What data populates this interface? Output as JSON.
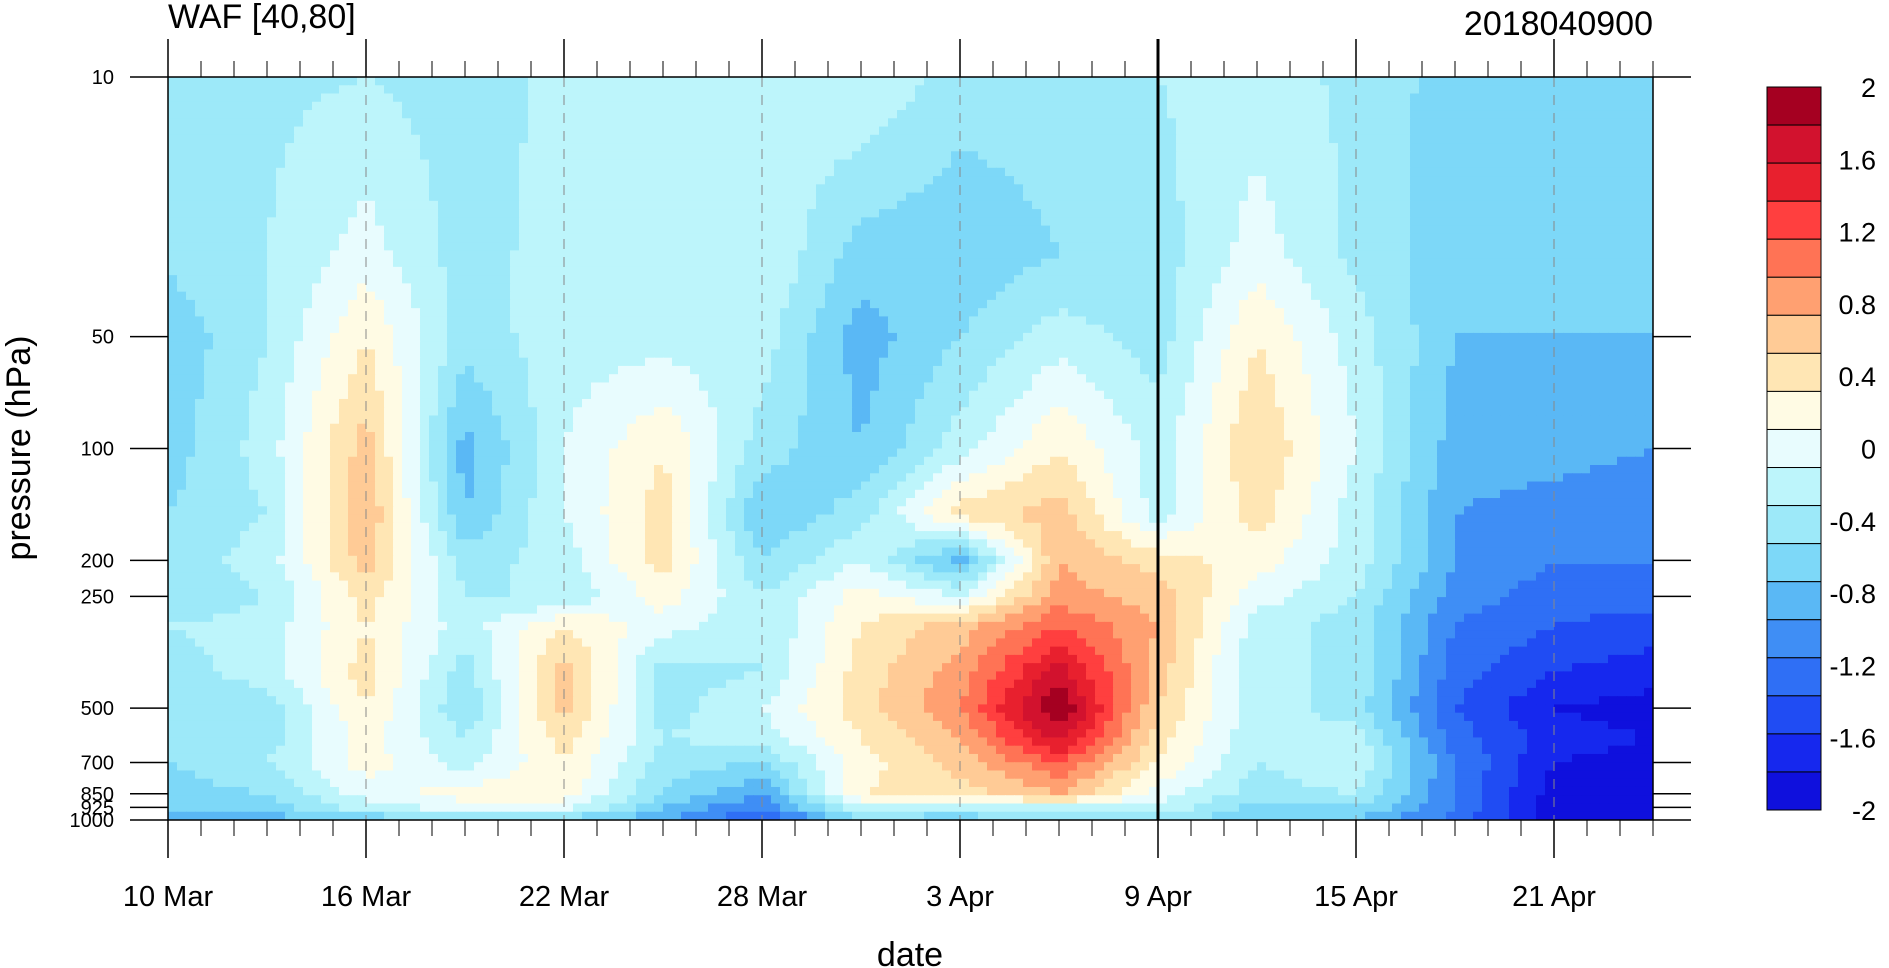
{
  "chart_data": {
    "type": "heatmap",
    "subtype": "filled-contour",
    "title": "WAF [40,80]",
    "date_label": "2018040900",
    "xlabel": "date",
    "ylabel": "pressure (hPa)",
    "x_tick_labels": [
      "10 Mar",
      "16 Mar",
      "22 Mar",
      "28 Mar",
      "3 Apr",
      "9 Apr",
      "15 Apr",
      "21 Apr"
    ],
    "x_tick_days": [
      0,
      6,
      12,
      18,
      24,
      30,
      36,
      42
    ],
    "x_range_days": [
      0,
      45
    ],
    "current_day_marker": 30,
    "y_scale": "log",
    "y_ticks": [
      10,
      50,
      100,
      200,
      250,
      500,
      700,
      850,
      925,
      1000
    ],
    "y_tick_labels": [
      "10",
      "50",
      "100",
      "200",
      "250",
      "500",
      "700",
      "850",
      "925",
      "1000"
    ],
    "ylim": [
      1000,
      10
    ],
    "colorbar": {
      "levels": [
        -2,
        -1.8,
        -1.6,
        -1.4,
        -1.2,
        -1.0,
        -0.8,
        -0.6,
        -0.4,
        -0.2,
        0,
        0.2,
        0.4,
        0.6,
        0.8,
        1.0,
        1.2,
        1.4,
        1.6,
        1.8,
        2.0
      ],
      "labels": [
        "2",
        "1.6",
        "1.2",
        "0.8",
        "0.4",
        "0",
        "-0.4",
        "-0.8",
        "-1.2",
        "-1.6",
        "-2"
      ],
      "colors_top_to_bottom": [
        "#a50021",
        "#d2122e",
        "#e8202e",
        "#ff3f3f",
        "#ff7355",
        "#ffa071",
        "#ffcb96",
        "#ffe6b4",
        "#fffbe4",
        "#e8fcfe",
        "#bdf5fb",
        "#9de9f9",
        "#7dd8f8",
        "#5ab8f5",
        "#3f8ef5",
        "#2f6ff5",
        "#204cf3",
        "#1628ee",
        "#0f10dd"
      ]
    },
    "grid": {
      "days": [
        0,
        3,
        6,
        9,
        12,
        15,
        18,
        21,
        24,
        27,
        30,
        33,
        36,
        39,
        42,
        45
      ],
      "p": [
        10,
        30,
        50,
        100,
        150,
        200,
        250,
        300,
        400,
        500,
        600,
        700,
        850,
        925,
        1000
      ],
      "values": [
        [
          -0.45,
          -0.45,
          -0.4,
          -0.5,
          -0.35,
          -0.4,
          -0.3,
          -0.2,
          -0.5,
          -0.5,
          -0.4,
          -0.3,
          -0.45,
          -0.7,
          -0.6,
          -0.6
        ],
        [
          -0.55,
          -0.4,
          -0.1,
          -0.5,
          -0.3,
          -0.4,
          -0.2,
          -0.7,
          -0.75,
          -0.6,
          -0.5,
          -0.1,
          -0.45,
          -0.75,
          -0.7,
          -0.7
        ],
        [
          -0.75,
          -0.4,
          0.2,
          -0.5,
          -0.3,
          -0.3,
          -0.3,
          -0.9,
          -0.6,
          -0.3,
          -0.5,
          0.2,
          -0.3,
          -0.8,
          -0.8,
          -0.8
        ],
        [
          -0.7,
          -0.3,
          0.5,
          -0.9,
          -0.2,
          0.2,
          -0.5,
          -0.8,
          -0.3,
          0.2,
          -0.3,
          0.4,
          -0.2,
          -0.9,
          -0.9,
          -1.0
        ],
        [
          -0.6,
          -0.4,
          0.6,
          -0.8,
          -0.2,
          0.3,
          -0.8,
          -0.5,
          0.3,
          0.5,
          -0.3,
          0.3,
          -0.3,
          -1.0,
          -1.1,
          -1.2
        ],
        [
          -0.5,
          -0.3,
          0.5,
          -0.5,
          -0.3,
          0.3,
          -0.6,
          -0.2,
          -0.9,
          0.6,
          0.3,
          0.1,
          -0.3,
          -1.0,
          -1.2,
          -1.2
        ],
        [
          -0.6,
          -0.4,
          0.3,
          -0.4,
          -0.4,
          0.1,
          -0.4,
          0.1,
          -0.2,
          0.7,
          0.5,
          -0.1,
          -0.4,
          -1.1,
          -1.3,
          -1.3
        ],
        [
          -0.4,
          -0.3,
          0.2,
          -0.3,
          0.2,
          -0.1,
          -0.4,
          0.2,
          0.5,
          1.0,
          0.6,
          -0.3,
          -0.5,
          -1.2,
          -1.4,
          -1.5
        ],
        [
          -0.5,
          -0.3,
          0.3,
          -0.5,
          0.5,
          -0.5,
          -0.4,
          0.3,
          0.7,
          1.5,
          0.5,
          -0.4,
          -0.4,
          -1.3,
          -1.6,
          -1.7
        ],
        [
          -0.6,
          -0.5,
          0.2,
          -0.6,
          0.5,
          -0.5,
          -0.2,
          0.3,
          0.8,
          1.8,
          0.4,
          -0.3,
          -0.5,
          -1.4,
          -1.8,
          -1.9
        ],
        [
          -0.5,
          -0.5,
          0.1,
          -0.4,
          0.3,
          -0.4,
          -0.3,
          0.2,
          0.6,
          1.5,
          0.3,
          -0.4,
          -0.3,
          -1.3,
          -1.7,
          -1.8
        ],
        [
          -0.6,
          -0.4,
          0.1,
          -0.3,
          0.2,
          -0.5,
          -0.6,
          0.1,
          0.5,
          1.0,
          0.2,
          -0.4,
          -0.2,
          -1.2,
          -1.8,
          -1.9
        ],
        [
          -0.7,
          -0.6,
          -0.1,
          0.1,
          0.1,
          -0.6,
          -1.0,
          0.2,
          0.3,
          0.6,
          -0.1,
          -0.5,
          -0.4,
          -1.2,
          -1.9,
          -1.9
        ],
        [
          -0.8,
          -0.7,
          -0.3,
          -0.1,
          -0.1,
          -0.8,
          -1.2,
          -0.2,
          -0.3,
          -0.2,
          -0.2,
          -0.7,
          -0.6,
          -1.2,
          -1.9,
          -1.9
        ],
        [
          -0.9,
          -0.9,
          -0.8,
          -0.6,
          -0.7,
          -1.0,
          -1.4,
          -0.7,
          -0.8,
          -0.6,
          -0.5,
          -0.8,
          -0.8,
          -1.3,
          -1.9,
          -1.9
        ]
      ]
    }
  }
}
